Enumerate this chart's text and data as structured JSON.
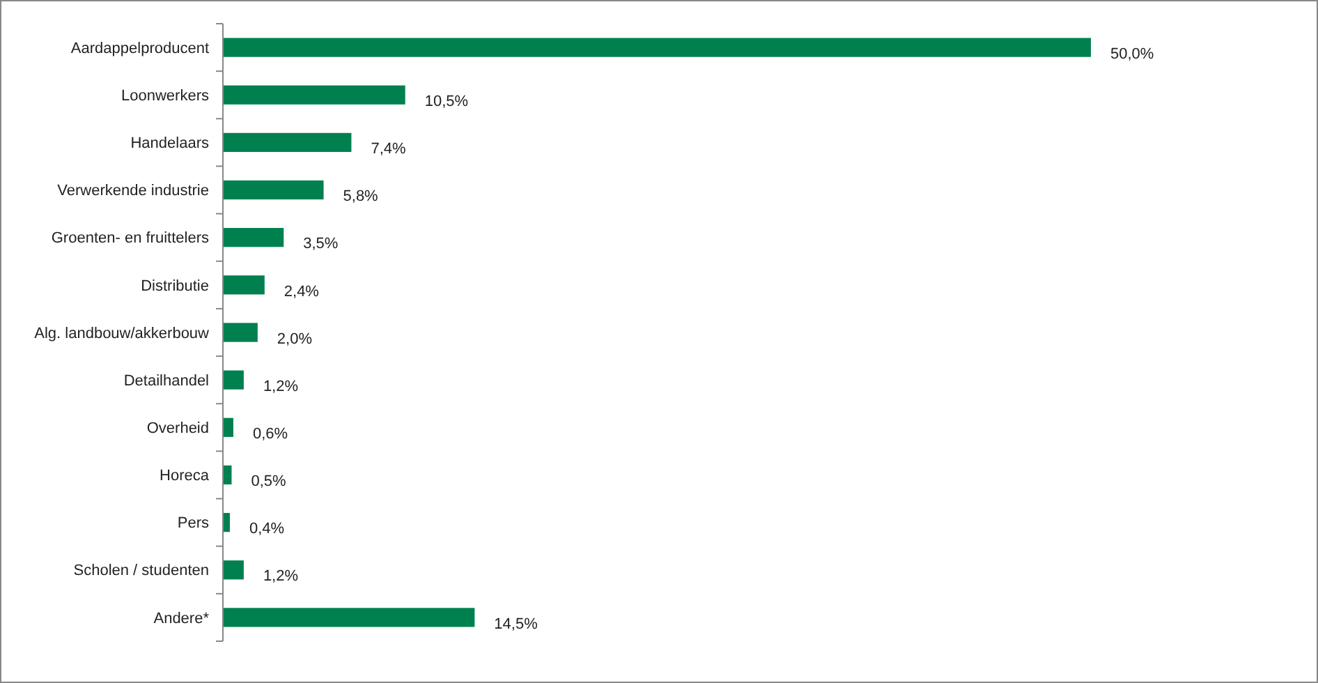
{
  "chart_data": {
    "type": "bar",
    "orientation": "horizontal",
    "categories": [
      "Aardappelproducent",
      "Loonwerkers",
      "Handelaars",
      "Verwerkende industrie",
      "Groenten- en fruittelers",
      "Distributie",
      "Alg. landbouw/akkerbouw",
      "Detailhandel",
      "Overheid",
      "Horeca",
      "Pers",
      "Scholen / studenten",
      "Andere*"
    ],
    "values": [
      50.0,
      10.5,
      7.4,
      5.8,
      3.5,
      2.4,
      2.0,
      1.2,
      0.6,
      0.5,
      0.4,
      1.2,
      14.5
    ],
    "value_labels": [
      "50,0%",
      "10,5%",
      "7,4%",
      "5,8%",
      "3,5%",
      "2,4%",
      "2,0%",
      "1,2%",
      "0,6%",
      "0,5%",
      "0,4%",
      "1,2%",
      "14,5%"
    ],
    "color": "#00804f",
    "tick_labels": "y"
  }
}
